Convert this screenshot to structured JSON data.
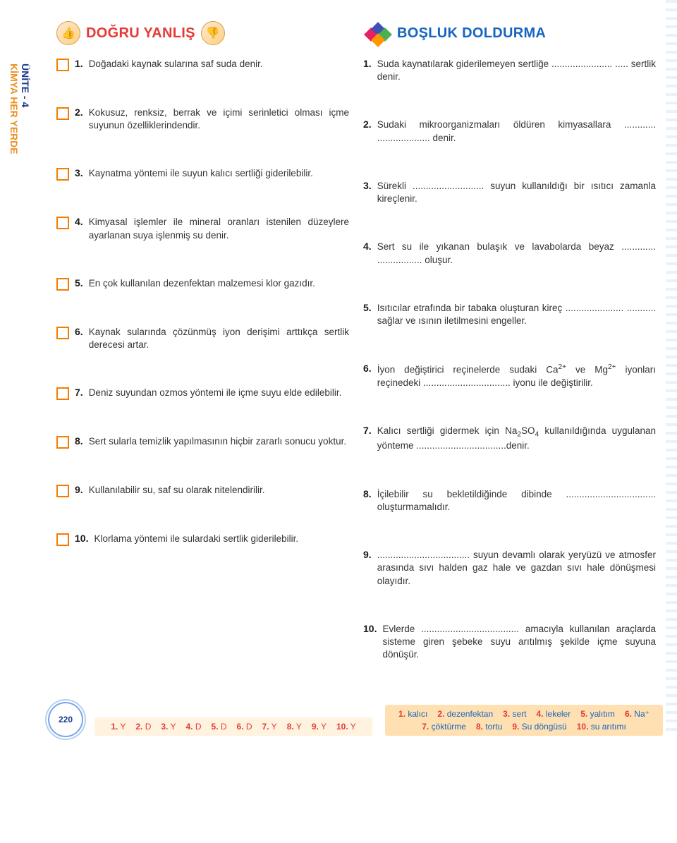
{
  "side": {
    "unit": "ÜNİTE - 4",
    "subject": "KİMYA HER YERDE"
  },
  "headers": {
    "left": "DOĞRU YANLIŞ",
    "right": "BOŞLUK DOLDURMA"
  },
  "left_items": [
    {
      "n": "1.",
      "t": "Doğadaki kaynak sularına saf suda denir."
    },
    {
      "n": "2.",
      "t": "Kokusuz, renksiz, berrak ve içimi serinletici olması içme suyunun özelliklerindendir."
    },
    {
      "n": "3.",
      "t": "Kaynatma yöntemi ile suyun kalıcı sertliği giderilebilir."
    },
    {
      "n": "4.",
      "t": "Kimyasal işlemler ile mineral oranları istenilen düzeylere ayarlanan suya işlenmiş su denir."
    },
    {
      "n": "5.",
      "t": "En çok kullanılan dezenfektan malzemesi klor gazıdır."
    },
    {
      "n": "6.",
      "t": "Kaynak sularında çözünmüş iyon derişimi arttıkça sertlik derecesi artar."
    },
    {
      "n": "7.",
      "t": "Deniz suyundan ozmos yöntemi ile içme suyu elde edilebilir."
    },
    {
      "n": "8.",
      "t": "Sert sularla temizlik yapılmasının hiçbir zararlı sonucu yoktur."
    },
    {
      "n": "9.",
      "t": "Kullanılabilir su, saf su olarak nitelendirilir."
    },
    {
      "n": "10.",
      "t": "Klorlama yöntemi ile sulardaki sertlik giderilebilir."
    }
  ],
  "right_items": [
    {
      "n": "1.",
      "t": "Suda kaynatılarak giderilemeyen sertliğe ....................... ..... sertlik denir."
    },
    {
      "n": "2.",
      "t": "Sudaki mikroorganizmaları öldüren kimyasallara ............ .................... denir."
    },
    {
      "n": "3.",
      "t": "Sürekli ........................... suyun kullanıldığı bir ısıtıcı zamanla kireçlenir."
    },
    {
      "n": "4.",
      "t": "Sert su ile yıkanan bulaşık ve lavabolarda beyaz ............. ................. oluşur."
    },
    {
      "n": "5.",
      "t": "Isıtıcılar etrafında bir tabaka oluşturan kireç ...................... ........... sağlar ve ısının iletilmesini engeller."
    },
    {
      "n": "6.",
      "html": "İyon değiştirici reçinelerde sudaki Ca<sup>2+</sup> ve Mg<sup>2+</sup> iyonları reçinedeki ................................. iyonu ile değiştirilir."
    },
    {
      "n": "7.",
      "html": "Kalıcı sertliği gidermek için Na<sub>2</sub>SO<sub>4</sub> kullanıldığında uygulanan yönteme ..................................denir."
    },
    {
      "n": "8.",
      "t": "İçilebilir su bekletildiğinde dibinde .................................. oluşturmamalıdır."
    },
    {
      "n": "9.",
      "t": "................................... suyun devamlı olarak yeryüzü ve atmosfer arasında sıvı halden gaz hale ve gazdan sıvı hale dönüşmesi olayıdır."
    },
    {
      "n": "10.",
      "t": "Evlerde ..................................... amacıyla kullanılan araçlarda sisteme giren şebeke suyu arıtılmış şekilde içme suyuna dönüşür."
    }
  ],
  "page_number": "220",
  "answers_left": [
    {
      "k": "1.",
      "v": "Y"
    },
    {
      "k": "2.",
      "v": "D"
    },
    {
      "k": "3.",
      "v": "Y"
    },
    {
      "k": "4.",
      "v": "D"
    },
    {
      "k": "5.",
      "v": "D"
    },
    {
      "k": "6.",
      "v": "D"
    },
    {
      "k": "7.",
      "v": "Y"
    },
    {
      "k": "8.",
      "v": "Y"
    },
    {
      "k": "9.",
      "v": "Y"
    },
    {
      "k": "10.",
      "v": "Y"
    }
  ],
  "answers_right": [
    {
      "k": "1.",
      "v": "kalıcı"
    },
    {
      "k": "2.",
      "v": "dezenfektan"
    },
    {
      "k": "3.",
      "v": "sert"
    },
    {
      "k": "4.",
      "v": "lekeler"
    },
    {
      "k": "5.",
      "v": "yalıtım"
    },
    {
      "k": "6.",
      "v": "Na⁺"
    },
    {
      "k": "7.",
      "v": "çöktürme"
    },
    {
      "k": "8.",
      "v": "tortu"
    },
    {
      "k": "9.",
      "v": "Su döngüsü"
    },
    {
      "k": "10.",
      "v": "su arıtımı"
    }
  ]
}
